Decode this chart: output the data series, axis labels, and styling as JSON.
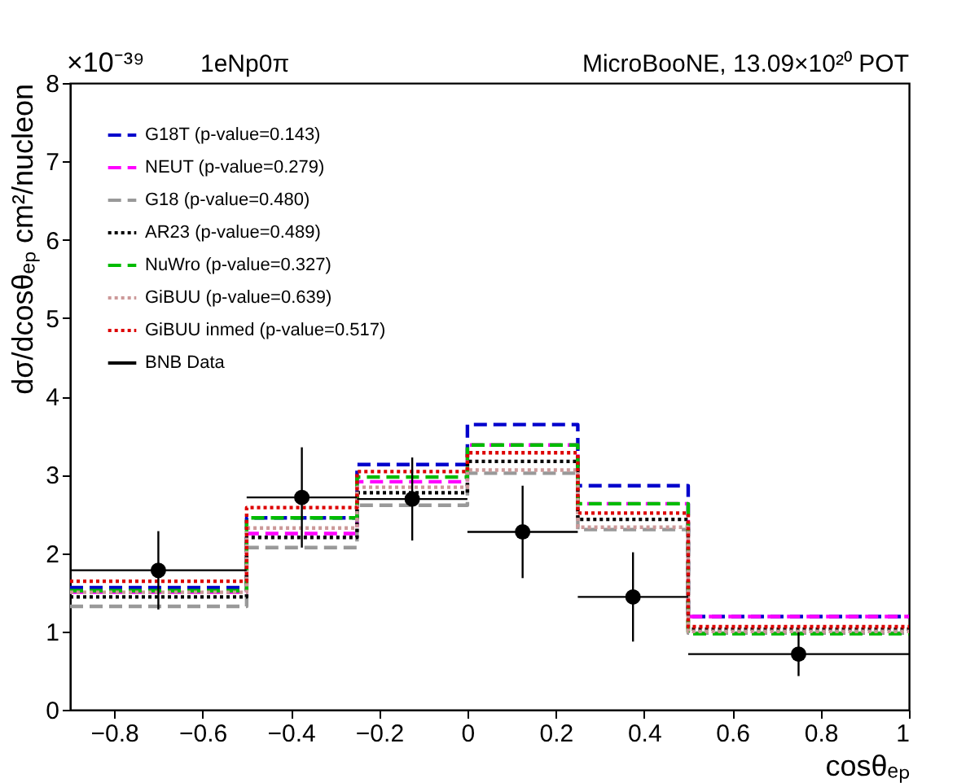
{
  "chart_data": {
    "type": "histogram",
    "title": "1eNp0π",
    "xlabel": "cosθₑₚ",
    "ylabel": "dσ/dcosθₑₚ cm²/nucleon",
    "annotations": [
      "×10⁻³⁹",
      "MicroBooNE, 13.09×10²⁰ POT"
    ],
    "bins": [
      -0.9,
      -0.5,
      -0.25,
      0,
      0.25,
      0.5,
      1
    ],
    "xlim": [
      -0.9,
      1
    ],
    "xticks": [
      -0.8,
      -0.6,
      -0.4,
      -0.2,
      0,
      0.2,
      0.4,
      0.6,
      0.8,
      1
    ],
    "ylim": [
      0,
      8
    ],
    "yticks": [
      0,
      1,
      2,
      3,
      4,
      5,
      6,
      7,
      8
    ],
    "grid": false,
    "legend": "top left",
    "series": [
      {
        "name": "G18T (p-value=0.143)",
        "color": "#0000cc",
        "line_style": "dashed",
        "values": [
          1.56,
          2.45,
          3.13,
          3.64,
          2.86,
          1.19
        ]
      },
      {
        "name": "NEUT (p-value=0.279)",
        "color": "#ff00ff",
        "line_style": "dashed",
        "values": [
          1.5,
          2.25,
          2.91,
          3.38,
          2.63,
          1.19
        ]
      },
      {
        "name": "G18 (p-value=0.480)",
        "color": "#999999",
        "line_style": "dashed",
        "values": [
          1.32,
          2.07,
          2.61,
          3.02,
          2.3,
          0.98
        ]
      },
      {
        "name": "AR23 (p-value=0.489)",
        "color": "#000000",
        "line_style": "dotted",
        "values": [
          1.44,
          2.2,
          2.77,
          3.17,
          2.43,
          1.03
        ]
      },
      {
        "name": "NuWro (p-value=0.327)",
        "color": "#00bb00",
        "line_style": "dashed",
        "values": [
          1.52,
          2.45,
          2.97,
          3.38,
          2.63,
          0.97
        ]
      },
      {
        "name": "GiBUU (p-value=0.639)",
        "color": "#cc9999",
        "line_style": "dotted",
        "values": [
          1.5,
          2.32,
          2.84,
          3.06,
          2.33,
          1.0
        ]
      },
      {
        "name": "GiBUU inmed (p-value=0.517)",
        "color": "#dd0000",
        "line_style": "dotted",
        "values": [
          1.64,
          2.58,
          3.04,
          3.28,
          2.51,
          1.06
        ]
      },
      {
        "name": "BNB Data",
        "type": "scatter",
        "marker": "circle",
        "color": "#000000",
        "x": [
          -0.7,
          -0.375,
          -0.125,
          0.125,
          0.375,
          0.75
        ],
        "values": [
          1.78,
          2.71,
          2.69,
          2.27,
          1.44,
          0.71
        ],
        "errors": [
          0.5,
          0.64,
          0.53,
          0.59,
          0.57,
          0.28
        ],
        "xerrors": [
          0.2,
          0.125,
          0.125,
          0.125,
          0.125,
          0.25
        ]
      }
    ]
  }
}
